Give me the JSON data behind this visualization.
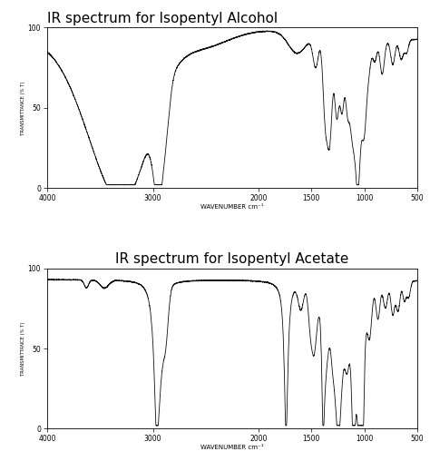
{
  "title1": "IR spectrum for Isopentyl Alcohol",
  "title2": "IR spectrum for Isopentyl Acetate",
  "xlabel": "WAVENUMBER cm⁻¹",
  "ylabel": "TRANSMITTANCE (% T)",
  "xmin": 4000,
  "xmax": 500,
  "ymin": 0,
  "ymax": 100,
  "xticks": [
    4000,
    3000,
    2000,
    1500,
    1000,
    500
  ],
  "yticks": [
    0,
    50,
    100
  ],
  "line_color": "#111111",
  "bg_color": "#ffffff",
  "title1_fontsize": 11,
  "title2_fontsize": 11
}
